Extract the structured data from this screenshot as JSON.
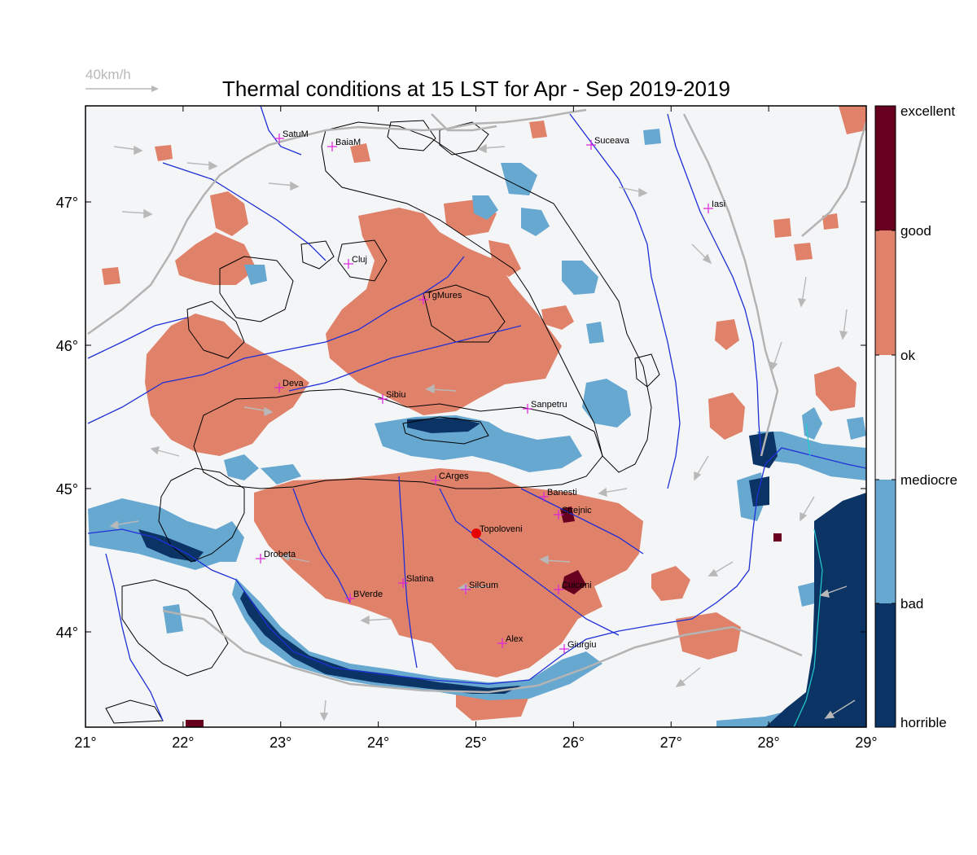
{
  "title": "Thermal conditions at 15 LST for Apr - Sep  2019-2019",
  "wind_scale_label": "40km/h",
  "x_ticks": [
    "21°",
    "22°",
    "23°",
    "24°",
    "25°",
    "26°",
    "27°",
    "28°",
    "29°"
  ],
  "y_ticks": [
    "47°",
    "46°",
    "45°",
    "44°"
  ],
  "legend": [
    "excellent",
    "good",
    "ok",
    "mediocre",
    "bad",
    "horrible"
  ],
  "colors": {
    "excellent": "#67001f",
    "good": "#e0826a",
    "ok": "#f4f5f7",
    "bad": "#67a8d0",
    "horrible": "#0b3465",
    "rivers": "#1f2fd6",
    "borders": "#b4b4b4",
    "wind_arrows": "#b8b8b8",
    "contours": "#000000",
    "marker": "#e60000",
    "city_cross": "#dd22dd"
  },
  "cities": [
    "SatuM",
    "BaiaM",
    "Suceava",
    "Iasi",
    "Cluj",
    "TgMures",
    "Deva",
    "Sibiu",
    "Sanpetru",
    "CArges",
    "Banesti",
    "Strejnic",
    "Topoloveni",
    "Drobeta",
    "Slatina",
    "SilGum",
    "Cuiceni",
    "BVerde",
    "Alex",
    "Giurgiu"
  ]
}
